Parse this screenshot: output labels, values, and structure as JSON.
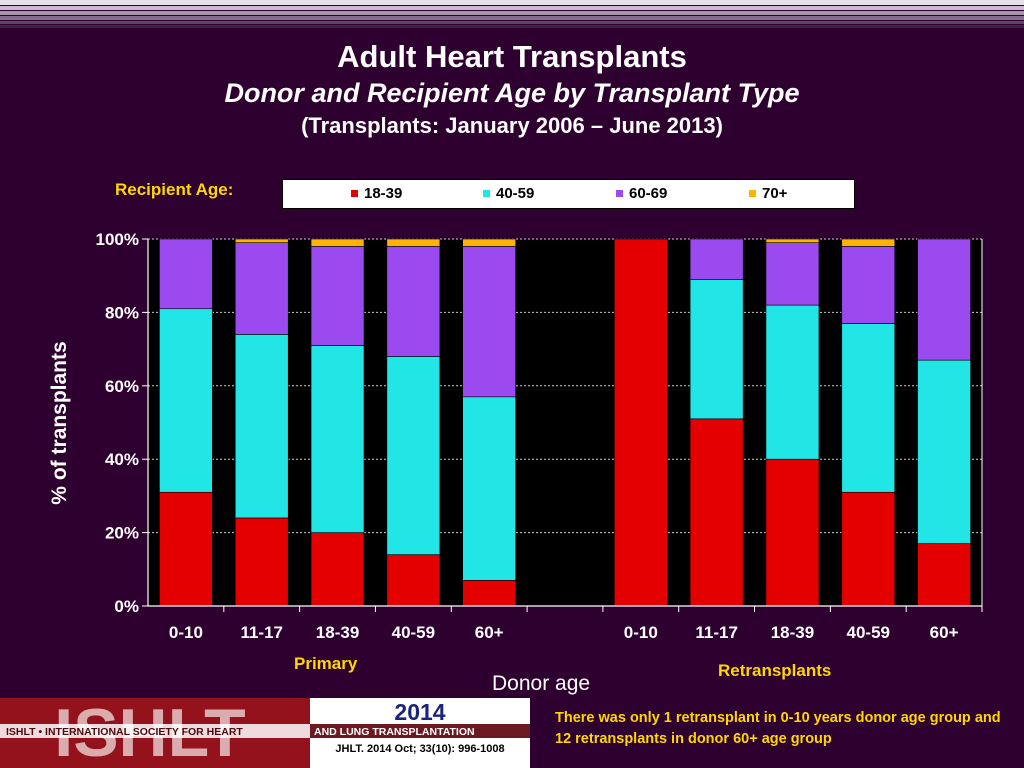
{
  "header": {
    "title": "Adult Heart Transplants",
    "subtitle": "Donor and Recipient Age by Transplant Type",
    "period": "(Transplants: January 2006 – June 2013)"
  },
  "legend": {
    "caption": "Recipient Age:",
    "items": [
      {
        "label": "18-39",
        "color": "#e50000"
      },
      {
        "label": "40-59",
        "color": "#22e5e5"
      },
      {
        "label": "60-69",
        "color": "#9b4af0"
      },
      {
        "label": "70+",
        "color": "#ffb300"
      }
    ]
  },
  "chart_data": {
    "type": "bar",
    "stacked": true,
    "ylabel": "% of transplants",
    "xlabel": "Donor  age",
    "ylim": [
      0,
      100
    ],
    "yticks": [
      "0%",
      "20%",
      "40%",
      "60%",
      "80%",
      "100%"
    ],
    "groups": [
      {
        "label": "Primary",
        "categories": [
          "0-10",
          "11-17",
          "18-39",
          "40-59",
          "60+"
        ]
      },
      {
        "label": "Retransplants",
        "categories": [
          "0-10",
          "11-17",
          "18-39",
          "40-59",
          "60+"
        ]
      }
    ],
    "series": [
      {
        "name": "18-39",
        "color": "#e50000",
        "values": [
          31,
          24,
          20,
          14,
          7,
          100,
          51,
          40,
          31,
          17
        ]
      },
      {
        "name": "40-59",
        "color": "#22e5e5",
        "values": [
          50,
          50,
          51,
          54,
          50,
          0,
          38,
          42,
          46,
          50
        ]
      },
      {
        "name": "60-69",
        "color": "#9b4af0",
        "values": [
          19,
          25,
          27,
          30,
          41,
          0,
          11,
          17,
          21,
          33
        ]
      },
      {
        "name": "70+",
        "color": "#ffb300",
        "values": [
          0,
          1,
          2,
          2,
          2,
          0,
          0,
          1,
          2,
          0
        ]
      }
    ]
  },
  "footer": {
    "year": "2014",
    "logo_text": "ISHLT",
    "logo_banner": "ISHLT • INTERNATIONAL SOCIETY FOR HEART AND LUNG TRANSPLANTATION",
    "citation": "JHLT. 2014 Oct; 33(10): 996-1008",
    "note": "There was only 1 retransplant in 0-10 years donor age group and 12 retransplants in donor 60+ age group"
  }
}
